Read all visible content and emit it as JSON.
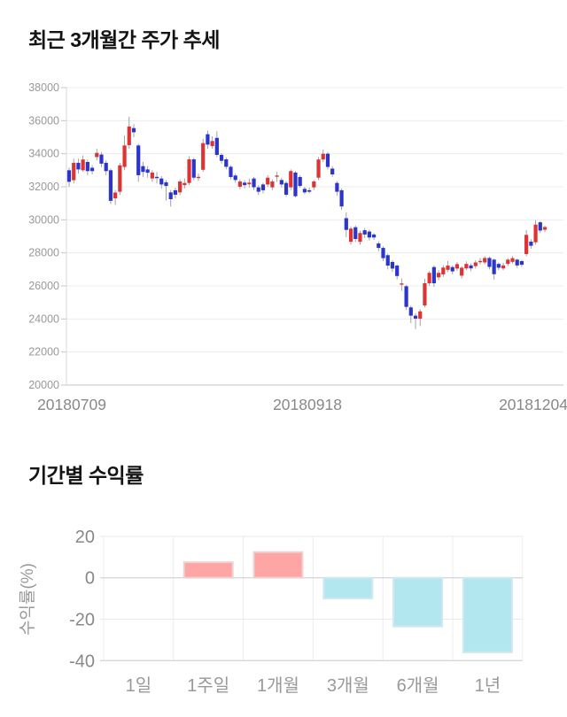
{
  "chart_data": [
    {
      "type": "candlestick",
      "title": "최근 3개월간 주가 추세",
      "y_ticks": [
        38000,
        36000,
        34000,
        32000,
        30000,
        28000,
        26000,
        24000,
        22000,
        20000
      ],
      "ylim": [
        20000,
        38000
      ],
      "x_labels": [
        "20180709",
        "20180918",
        "20181204"
      ],
      "up_color": "#dd3333",
      "down_color": "#2b35cc",
      "wick_color": "#999999",
      "grid": "horizontal",
      "candles_ohlc": [
        [
          33000,
          33150,
          32000,
          32300
        ],
        [
          32400,
          33700,
          32200,
          33450
        ],
        [
          33450,
          33700,
          32800,
          33050
        ],
        [
          33000,
          33900,
          32900,
          33650
        ],
        [
          33500,
          33650,
          32700,
          32950
        ],
        [
          33150,
          33300,
          32750,
          32950
        ],
        [
          33800,
          34300,
          33600,
          34050
        ],
        [
          33950,
          34100,
          33200,
          33400
        ],
        [
          33450,
          33600,
          32700,
          32950
        ],
        [
          33000,
          33100,
          30950,
          31150
        ],
        [
          31300,
          31800,
          30900,
          31650
        ],
        [
          31700,
          33450,
          31500,
          33300
        ],
        [
          33200,
          35100,
          33000,
          34500
        ],
        [
          34520,
          36250,
          34300,
          35650
        ],
        [
          35550,
          35800,
          35000,
          35300
        ],
        [
          34500,
          34600,
          32300,
          32700
        ],
        [
          33250,
          33500,
          32600,
          32900
        ],
        [
          33050,
          33250,
          32550,
          32850
        ],
        [
          32500,
          33000,
          32300,
          32860
        ],
        [
          32600,
          32900,
          32200,
          32590
        ],
        [
          32500,
          32650,
          31900,
          32140
        ],
        [
          32270,
          32400,
          31160,
          32050
        ],
        [
          31660,
          31800,
          30800,
          31250
        ],
        [
          31790,
          31950,
          31300,
          31520
        ],
        [
          31660,
          32450,
          31500,
          32320
        ],
        [
          32100,
          32500,
          31900,
          32230
        ],
        [
          32230,
          33840,
          32100,
          33660
        ],
        [
          33660,
          33750,
          32400,
          32550
        ],
        [
          32550,
          32800,
          32350,
          32600
        ],
        [
          33030,
          34900,
          32900,
          34640
        ],
        [
          35180,
          35400,
          34300,
          34550
        ],
        [
          34460,
          35050,
          34310,
          34770
        ],
        [
          34960,
          35360,
          33800,
          33930
        ],
        [
          33930,
          34050,
          33400,
          33570
        ],
        [
          33660,
          33780,
          33050,
          33210
        ],
        [
          33210,
          33300,
          32450,
          32590
        ],
        [
          32680,
          32800,
          32250,
          32410
        ],
        [
          32000,
          32450,
          31850,
          32320
        ],
        [
          32250,
          32400,
          31900,
          32100
        ],
        [
          32150,
          32500,
          31950,
          32250
        ],
        [
          32500,
          32600,
          31800,
          31970
        ],
        [
          31965,
          32100,
          31500,
          31700
        ],
        [
          32140,
          32250,
          31600,
          31790
        ],
        [
          32140,
          32700,
          32000,
          32550
        ],
        [
          31965,
          32450,
          31800,
          32320
        ],
        [
          32620,
          32900,
          32300,
          32680
        ],
        [
          32410,
          32550,
          31950,
          32140
        ],
        [
          32230,
          32350,
          31400,
          31520
        ],
        [
          31965,
          33050,
          31800,
          32950
        ],
        [
          32860,
          32950,
          31350,
          31430
        ],
        [
          32590,
          32700,
          31950,
          32050
        ],
        [
          31875,
          32000,
          31550,
          31660
        ],
        [
          31790,
          31950,
          31600,
          31700
        ],
        [
          31965,
          32400,
          31800,
          32320
        ],
        [
          32550,
          33800,
          32400,
          33650
        ],
        [
          33650,
          34250,
          33500,
          34000
        ],
        [
          34000,
          34100,
          33050,
          33200
        ],
        [
          33100,
          33250,
          32600,
          32750
        ],
        [
          32230,
          32350,
          31450,
          31700
        ],
        [
          31790,
          31900,
          30600,
          30810
        ],
        [
          30100,
          30450,
          28950,
          29390
        ],
        [
          28670,
          29600,
          28500,
          29470
        ],
        [
          29550,
          29650,
          28650,
          28840
        ],
        [
          28670,
          29350,
          28500,
          29200
        ],
        [
          29370,
          29500,
          28900,
          29110
        ],
        [
          29290,
          29400,
          28750,
          28930
        ],
        [
          29110,
          29200,
          28800,
          28930
        ],
        [
          28570,
          28700,
          28100,
          28300
        ],
        [
          28300,
          28400,
          27500,
          27680
        ],
        [
          27860,
          27950,
          27000,
          27230
        ],
        [
          27450,
          27550,
          26850,
          27050
        ],
        [
          27230,
          27300,
          26400,
          26600
        ],
        [
          26100,
          26450,
          25700,
          26150
        ],
        [
          25980,
          26050,
          24550,
          24730
        ],
        [
          24700,
          24800,
          23750,
          24200
        ],
        [
          24200,
          24350,
          23390,
          24020
        ],
        [
          24020,
          24600,
          23570,
          24460
        ],
        [
          24820,
          26430,
          24700,
          26160
        ],
        [
          26160,
          26900,
          26000,
          26790
        ],
        [
          27140,
          27250,
          25950,
          26160
        ],
        [
          26520,
          26950,
          26350,
          26790
        ],
        [
          26700,
          27250,
          26550,
          27110
        ],
        [
          26975,
          27500,
          26850,
          27230
        ],
        [
          27140,
          27250,
          26700,
          26880
        ],
        [
          27050,
          27450,
          26900,
          27320
        ],
        [
          26620,
          27200,
          26450,
          27100
        ],
        [
          27060,
          27480,
          26950,
          27330
        ],
        [
          27240,
          27350,
          26900,
          27060
        ],
        [
          27200,
          27550,
          27050,
          27420
        ],
        [
          27500,
          27700,
          27300,
          27510
        ],
        [
          27420,
          27800,
          27300,
          27690
        ],
        [
          27690,
          27780,
          27000,
          27150
        ],
        [
          27590,
          27650,
          26390,
          26710
        ],
        [
          27330,
          27420,
          26950,
          27100
        ],
        [
          27060,
          27400,
          26950,
          27240
        ],
        [
          27330,
          27680,
          27200,
          27590
        ],
        [
          27455,
          27800,
          27350,
          27680
        ],
        [
          27590,
          27650,
          27100,
          27240
        ],
        [
          27500,
          27580,
          27150,
          27280
        ],
        [
          27930,
          29390,
          27800,
          29090
        ],
        [
          28680,
          28830,
          28250,
          28430
        ],
        [
          28640,
          29980,
          28500,
          29710
        ],
        [
          29850,
          29920,
          29200,
          29350
        ],
        [
          29400,
          29650,
          29250,
          29560
        ]
      ]
    },
    {
      "type": "bar",
      "title": "기간별 수익률",
      "ylabel": "수익률(%)",
      "categories": [
        "1일",
        "1주일",
        "1개월",
        "3개월",
        "6개월",
        "1년"
      ],
      "values": [
        0,
        7.5,
        12.4,
        -10,
        -23.5,
        -36
      ],
      "y_ticks": [
        20,
        0,
        -20,
        -40
      ],
      "ylim": [
        -40,
        20
      ],
      "positive_color": "#ffa5a5",
      "negative_color": "#b3e7f0",
      "grid": "both"
    }
  ]
}
